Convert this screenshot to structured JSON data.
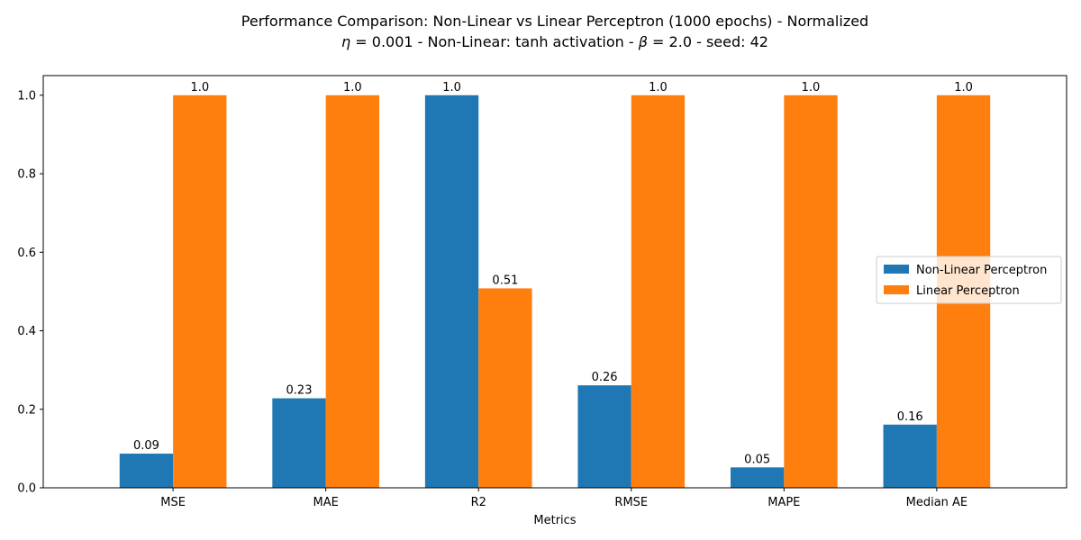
{
  "chart_data": {
    "type": "bar",
    "title": "Performance Comparison: Non-Linear vs Linear Perceptron (1000 epochs) - Normalized",
    "subtitle": {
      "eta_symbol": "η",
      "eta_text": " = 0.001 - Non-Linear: tanh activation - ",
      "beta_symbol": "β",
      "beta_text": " =  2.0 - seed: 42"
    },
    "xlabel": "Metrics",
    "ylabel": "",
    "categories": [
      "MSE",
      "MAE",
      "R2",
      "RMSE",
      "MAPE",
      "Median AE"
    ],
    "series": [
      {
        "name": "Non-Linear Perceptron",
        "color": "#1f77b4",
        "values": [
          0.087,
          0.228,
          1.0,
          0.261,
          0.052,
          0.161
        ],
        "labels": [
          "0.09",
          "0.23",
          "1.0",
          "0.26",
          "0.05",
          "0.16"
        ]
      },
      {
        "name": "Linear Perceptron",
        "color": "#ff7f0e",
        "values": [
          1.0,
          1.0,
          0.508,
          1.0,
          1.0,
          1.0
        ],
        "labels": [
          "1.0",
          "1.0",
          "0.51",
          "1.0",
          "1.0",
          "1.0"
        ]
      }
    ],
    "ylim": [
      0,
      1.05
    ],
    "yticks": [
      "0.0",
      "0.2",
      "0.4",
      "0.6",
      "0.8",
      "1.0"
    ],
    "ytick_values": [
      0.0,
      0.2,
      0.4,
      0.6,
      0.8,
      1.0
    ],
    "grid": false,
    "legend_position": "center-right"
  }
}
